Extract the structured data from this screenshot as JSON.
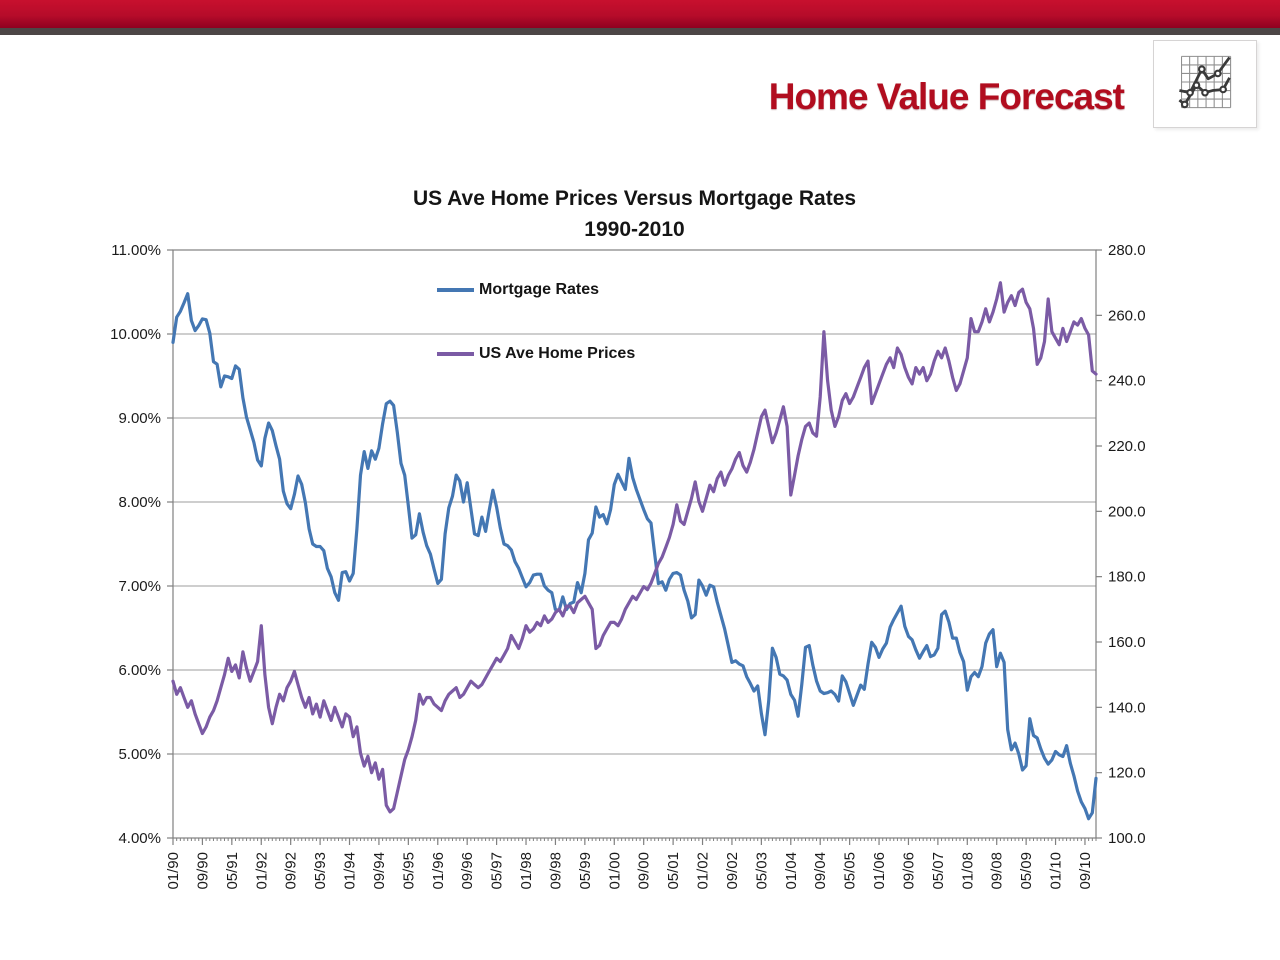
{
  "brand": {
    "title": "Home Value Forecast",
    "accent_color": "#b10d1f",
    "top_bar_color": "#b60c2a",
    "logo_icon": "line-chart-icon"
  },
  "chart_data": {
    "type": "line",
    "title": "US Ave Home Prices Versus Mortgage Rates",
    "subtitle": "1990-2010",
    "grid": "horizontal",
    "legend_position": "inside-top-left",
    "legend": [
      "Mortgage Rates",
      "US Ave Home Prices"
    ],
    "x_unit": "month",
    "x_range": [
      "01/1990",
      "12/2010"
    ],
    "x_tick_interval_months": 8,
    "x_tick_labels": [
      "01/90",
      "09/90",
      "05/91",
      "01/92",
      "09/92",
      "05/93",
      "01/94",
      "09/94",
      "05/95",
      "01/96",
      "09/96",
      "05/97",
      "01/98",
      "09/98",
      "05/99",
      "01/00",
      "09/00",
      "05/01",
      "01/02",
      "09/02",
      "05/03",
      "01/04",
      "09/04",
      "05/05",
      "01/06",
      "09/06",
      "05/07",
      "01/08",
      "09/08",
      "05/09",
      "01/10",
      "09/10"
    ],
    "left_axis": {
      "min": 4,
      "max": 11,
      "step": 1,
      "tick_labels": [
        "11.00%",
        "10.00%",
        "9.00%",
        "8.00%",
        "7.00%",
        "6.00%",
        "5.00%",
        "4.00%"
      ]
    },
    "right_axis": {
      "min": 100,
      "max": 280,
      "step": 20,
      "tick_labels": [
        "280.0",
        "260.0",
        "240.0",
        "220.0",
        "200.0",
        "180.0",
        "160.0",
        "140.0",
        "120.0",
        "100.0"
      ]
    },
    "series": [
      {
        "name": "Mortgage Rates",
        "axis": "left",
        "color": "#4477b3",
        "values": [
          9.9,
          10.2,
          10.27,
          10.37,
          10.48,
          10.16,
          10.04,
          10.1,
          10.18,
          10.17,
          10.01,
          9.67,
          9.64,
          9.37,
          9.5,
          9.49,
          9.47,
          9.62,
          9.58,
          9.24,
          9.01,
          8.86,
          8.71,
          8.5,
          8.43,
          8.76,
          8.94,
          8.85,
          8.67,
          8.51,
          8.13,
          7.98,
          7.92,
          8.09,
          8.31,
          8.21,
          7.99,
          7.68,
          7.5,
          7.47,
          7.47,
          7.42,
          7.21,
          7.11,
          6.92,
          6.83,
          7.16,
          7.17,
          7.06,
          7.15,
          7.68,
          8.32,
          8.6,
          8.4,
          8.61,
          8.51,
          8.64,
          8.93,
          9.17,
          9.2,
          9.15,
          8.83,
          8.46,
          8.32,
          7.96,
          7.57,
          7.61,
          7.86,
          7.64,
          7.48,
          7.38,
          7.2,
          7.03,
          7.08,
          7.62,
          7.93,
          8.07,
          8.32,
          8.25,
          8.0,
          8.23,
          7.92,
          7.62,
          7.6,
          7.82,
          7.65,
          7.9,
          8.14,
          7.94,
          7.69,
          7.5,
          7.48,
          7.43,
          7.29,
          7.21,
          7.1,
          6.99,
          7.04,
          7.13,
          7.14,
          7.14,
          7.0,
          6.95,
          6.92,
          6.72,
          6.71,
          6.87,
          6.72,
          6.79,
          6.81,
          7.04,
          6.92,
          7.15,
          7.55,
          7.63,
          7.94,
          7.82,
          7.85,
          7.74,
          7.91,
          8.21,
          8.33,
          8.24,
          8.15,
          8.52,
          8.29,
          8.15,
          8.03,
          7.91,
          7.8,
          7.75,
          7.38,
          7.03,
          7.05,
          6.95,
          7.08,
          7.15,
          7.16,
          7.13,
          6.95,
          6.82,
          6.62,
          6.66,
          7.07,
          7.0,
          6.89,
          7.01,
          6.99,
          6.81,
          6.65,
          6.49,
          6.29,
          6.09,
          6.11,
          6.07,
          6.05,
          5.92,
          5.84,
          5.75,
          5.81,
          5.48,
          5.23,
          5.63,
          6.26,
          6.15,
          5.95,
          5.93,
          5.88,
          5.71,
          5.64,
          5.45,
          5.83,
          6.27,
          6.29,
          6.06,
          5.87,
          5.75,
          5.72,
          5.73,
          5.75,
          5.71,
          5.63,
          5.93,
          5.86,
          5.72,
          5.58,
          5.7,
          5.82,
          5.77,
          6.07,
          6.33,
          6.27,
          6.15,
          6.25,
          6.32,
          6.51,
          6.6,
          6.68,
          6.76,
          6.52,
          6.4,
          6.36,
          6.24,
          6.14,
          6.22,
          6.29,
          6.16,
          6.18,
          6.26,
          6.66,
          6.7,
          6.57,
          6.38,
          6.38,
          6.21,
          6.1,
          5.76,
          5.92,
          5.97,
          5.92,
          6.04,
          6.32,
          6.43,
          6.48,
          6.04,
          6.2,
          6.09,
          5.29,
          5.05,
          5.13,
          5.0,
          4.81,
          4.86,
          5.42,
          5.22,
          5.19,
          5.06,
          4.95,
          4.88,
          4.93,
          5.03,
          4.99,
          4.97,
          5.1,
          4.89,
          4.74,
          4.56,
          4.43,
          4.35,
          4.23,
          4.3,
          4.71
        ]
      },
      {
        "name": "US Ave Home Prices",
        "axis": "right",
        "color": "#7b5ba5",
        "values": [
          148,
          144,
          146,
          143,
          140,
          142,
          138,
          135,
          132,
          134,
          137,
          139,
          142,
          146,
          150,
          155,
          151,
          153,
          149,
          157,
          152,
          148,
          151,
          154,
          165,
          150,
          140,
          135,
          140,
          144,
          142,
          146,
          148,
          151,
          147,
          143,
          140,
          143,
          138,
          141,
          137,
          142,
          139,
          136,
          140,
          137,
          134,
          138,
          137,
          131,
          134,
          126,
          122,
          125,
          120,
          123,
          118,
          121,
          110,
          108,
          109,
          114,
          119,
          124,
          127,
          131,
          136,
          144,
          141,
          143,
          143,
          141,
          140,
          139,
          142,
          144,
          145,
          146,
          143,
          144,
          146,
          148,
          147,
          146,
          147,
          149,
          151,
          153,
          155,
          154,
          156,
          158,
          162,
          160,
          158,
          161,
          165,
          163,
          164,
          166,
          165,
          168,
          166,
          167,
          169,
          170,
          168,
          171,
          171,
          169,
          172,
          173,
          174,
          172,
          170,
          158,
          159,
          162,
          164,
          166,
          166,
          165,
          167,
          170,
          172,
          174,
          173,
          175,
          177,
          176,
          178,
          181,
          184,
          186,
          189,
          192,
          196,
          202,
          197,
          196,
          200,
          204,
          209,
          203,
          200,
          204,
          208,
          206,
          210,
          212,
          208,
          211,
          213,
          216,
          218,
          214,
          212,
          215,
          219,
          224,
          229,
          231,
          226,
          221,
          224,
          228,
          232,
          226,
          205,
          211,
          217,
          222,
          226,
          227,
          224,
          223,
          235,
          255,
          240,
          231,
          226,
          229,
          234,
          236,
          233,
          235,
          238,
          241,
          244,
          246,
          233,
          236,
          239,
          242,
          245,
          247,
          244,
          250,
          248,
          244,
          241,
          239,
          244,
          242,
          244,
          240,
          242,
          246,
          249,
          247,
          250,
          246,
          241,
          237,
          239,
          243,
          247,
          259,
          255,
          255,
          258,
          262,
          258,
          261,
          265,
          270,
          261,
          264,
          266,
          263,
          267,
          268,
          264,
          262,
          256,
          245,
          247,
          252,
          265,
          255,
          253,
          251,
          256,
          252,
          255,
          258,
          257,
          259,
          256,
          254,
          243,
          242
        ]
      }
    ]
  }
}
